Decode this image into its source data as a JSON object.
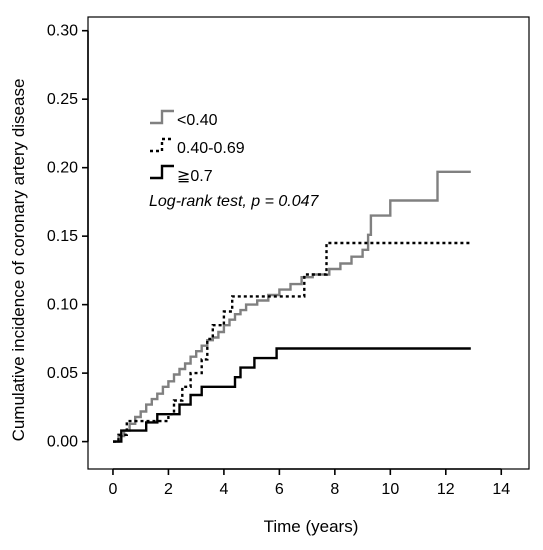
{
  "chart_data": {
    "type": "line",
    "subtype": "step",
    "title": "",
    "xlabel": "Time (years)",
    "ylabel": "Cumulative incidence of coronary artery disease",
    "xlim": [
      -0.9,
      15
    ],
    "ylim": [
      -0.02,
      0.31
    ],
    "x_ticks": [
      0,
      2,
      4,
      6,
      8,
      10,
      12,
      14
    ],
    "x_tick_labels": [
      "0",
      "2",
      "4",
      "6",
      "8",
      "10",
      "12",
      "14"
    ],
    "y_ticks": [
      0,
      0.05,
      0.1,
      0.15,
      0.2,
      0.25,
      0.3
    ],
    "y_tick_labels": [
      "0.00",
      "0.05",
      "0.10",
      "0.15",
      "0.20",
      "0.25",
      "0.30"
    ],
    "grid": false,
    "legend_position": "top-left",
    "annotation": "Log-rank test, p = 0.047",
    "series": [
      {
        "name": "<0.40",
        "color": "#808080",
        "dash": "solid",
        "points": [
          [
            0,
            0
          ],
          [
            0.2,
            0.004
          ],
          [
            0.4,
            0.008
          ],
          [
            0.6,
            0.013
          ],
          [
            0.8,
            0.018
          ],
          [
            1.0,
            0.022
          ],
          [
            1.2,
            0.027
          ],
          [
            1.4,
            0.031
          ],
          [
            1.6,
            0.035
          ],
          [
            1.8,
            0.04
          ],
          [
            2.0,
            0.044
          ],
          [
            2.2,
            0.049
          ],
          [
            2.4,
            0.053
          ],
          [
            2.6,
            0.057
          ],
          [
            2.8,
            0.062
          ],
          [
            3.0,
            0.066
          ],
          [
            3.2,
            0.07
          ],
          [
            3.4,
            0.074
          ],
          [
            3.6,
            0.076
          ],
          [
            3.8,
            0.08
          ],
          [
            4.0,
            0.085
          ],
          [
            4.2,
            0.089
          ],
          [
            4.4,
            0.093
          ],
          [
            4.6,
            0.096
          ],
          [
            4.8,
            0.1
          ],
          [
            5.2,
            0.103
          ],
          [
            5.6,
            0.107
          ],
          [
            6.0,
            0.111
          ],
          [
            6.4,
            0.115
          ],
          [
            6.8,
            0.12
          ],
          [
            7.2,
            0.122
          ],
          [
            7.8,
            0.126
          ],
          [
            8.2,
            0.13
          ],
          [
            8.6,
            0.135
          ],
          [
            9.0,
            0.14
          ],
          [
            9.2,
            0.151
          ],
          [
            9.3,
            0.165
          ],
          [
            10.0,
            0.176
          ],
          [
            11.7,
            0.197
          ],
          [
            12.9,
            0.197
          ]
        ]
      },
      {
        "name": "0.40-0.69",
        "color": "#000000",
        "dash": "dotted",
        "points": [
          [
            0,
            0
          ],
          [
            0.2,
            0.005
          ],
          [
            0.5,
            0.015
          ],
          [
            2.0,
            0.02
          ],
          [
            2.2,
            0.03
          ],
          [
            2.5,
            0.04
          ],
          [
            2.8,
            0.05
          ],
          [
            3.2,
            0.06
          ],
          [
            3.4,
            0.075
          ],
          [
            3.6,
            0.085
          ],
          [
            4.0,
            0.095
          ],
          [
            4.3,
            0.106
          ],
          [
            6.9,
            0.122
          ],
          [
            7.7,
            0.145
          ],
          [
            12.9,
            0.145
          ]
        ]
      },
      {
        "name": "≧0.7",
        "color": "#000000",
        "dash": "solid",
        "points": [
          [
            0,
            0
          ],
          [
            0.3,
            0.008
          ],
          [
            1.2,
            0.014
          ],
          [
            1.6,
            0.02
          ],
          [
            2.4,
            0.027
          ],
          [
            2.8,
            0.034
          ],
          [
            3.2,
            0.04
          ],
          [
            4.4,
            0.047
          ],
          [
            4.6,
            0.054
          ],
          [
            5.1,
            0.061
          ],
          [
            5.9,
            0.068
          ],
          [
            12.9,
            0.068
          ]
        ]
      }
    ]
  }
}
